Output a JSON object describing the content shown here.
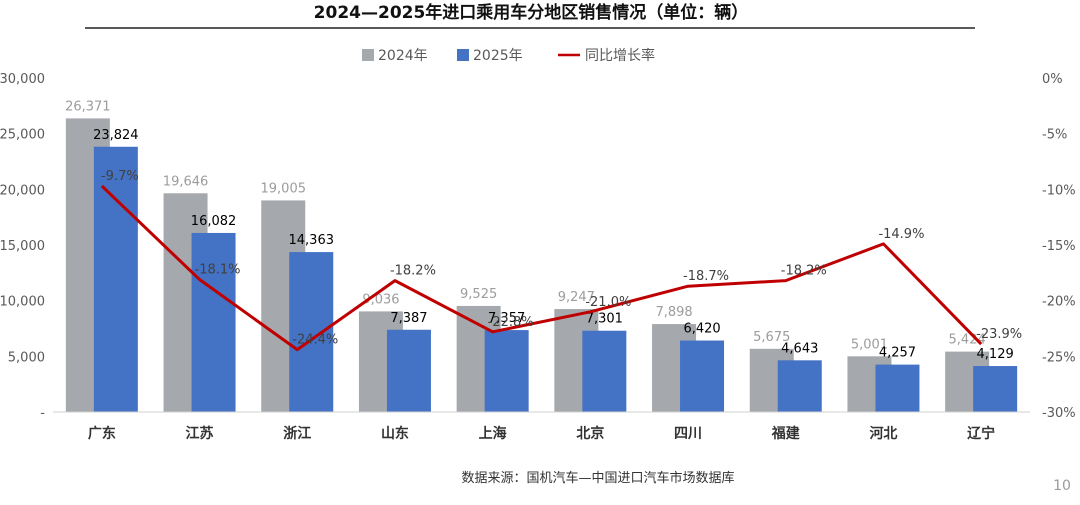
{
  "chart_data": {
    "type": "bar",
    "title": "2024—2025年进口乘用车分地区销售情况（单位：辆）",
    "categories": [
      "广东",
      "江苏",
      "浙江",
      "山东",
      "上海",
      "北京",
      "四川",
      "福建",
      "河北",
      "辽宁"
    ],
    "series": [
      {
        "name": "2024年",
        "color": "#A5A8AD",
        "values": [
          26371,
          19646,
          19005,
          9036,
          9525,
          9247,
          7898,
          5675,
          5001,
          5424
        ],
        "labels": [
          "26,371",
          "19,646",
          "19,005",
          "9,036",
          "9,525",
          "9,247",
          "7,898",
          "5,675",
          "5,001",
          "5,424"
        ]
      },
      {
        "name": "2025年",
        "color": "#4472C4",
        "values": [
          23824,
          16082,
          14363,
          7387,
          7357,
          7301,
          6420,
          4643,
          4257,
          4129
        ],
        "labels": [
          "23,824",
          "16,082",
          "14,363",
          "7,387",
          "7,357",
          "7,301",
          "6,420",
          "4,643",
          "4,257",
          "4,129"
        ]
      },
      {
        "name": "同比增长率",
        "type": "line",
        "axis": "right",
        "color": "#C00000",
        "values": [
          -9.7,
          -18.1,
          -24.4,
          -18.2,
          -22.8,
          -21.0,
          -18.7,
          -18.2,
          -14.9,
          -23.9
        ],
        "labels": [
          "-9.7%",
          "-18.1%",
          "-24.4%",
          "-18.2%",
          "-22.8%",
          "-21.0%",
          "-18.7%",
          "-18.2%",
          "-14.9%",
          "-23.9%"
        ]
      }
    ],
    "y_axis": {
      "min": 0,
      "max": 30000,
      "step": 5000,
      "tick_labels": [
        "-",
        "5,000",
        "10,000",
        "15,000",
        "20,000",
        "25,000",
        "30,000"
      ]
    },
    "y2_axis": {
      "min": -30,
      "max": 0,
      "step": 5,
      "tick_labels": [
        "-30%",
        "-25%",
        "-20%",
        "-15%",
        "-10%",
        "-5%",
        "0%"
      ]
    },
    "grid": false,
    "legend_position": "top"
  },
  "footer": {
    "source": "数据来源：国机汽车—中国进口汽车市场数据库",
    "page": "10"
  }
}
